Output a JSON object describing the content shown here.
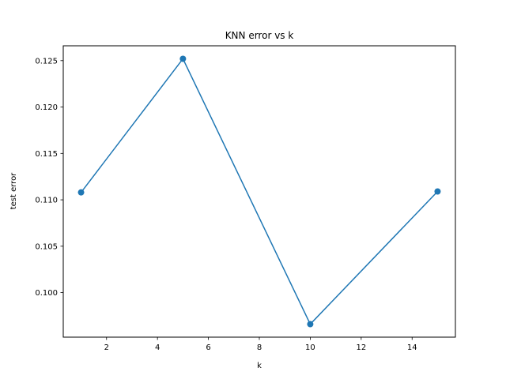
{
  "chart_data": {
    "type": "line",
    "title": "KNN error vs k",
    "xlabel": "k",
    "ylabel": "test error",
    "x": [
      1,
      5,
      10,
      15
    ],
    "series": [
      {
        "values": [
          0.1108,
          0.1252,
          0.0966,
          0.1109
        ],
        "color": "#1f77b4",
        "marker": "circle"
      }
    ],
    "xlim": [
      0.3,
      15.7
    ],
    "ylim": [
      0.0952,
      0.1266
    ],
    "xticks": [
      2,
      4,
      6,
      8,
      10,
      12,
      14
    ],
    "xtick_labels": [
      "2",
      "4",
      "6",
      "8",
      "10",
      "12",
      "14"
    ],
    "yticks": [
      0.1,
      0.105,
      0.11,
      0.115,
      0.12,
      0.125
    ],
    "ytick_labels": [
      "0.100",
      "0.105",
      "0.110",
      "0.115",
      "0.120",
      "0.125"
    ],
    "grid": false,
    "legend": "none"
  }
}
